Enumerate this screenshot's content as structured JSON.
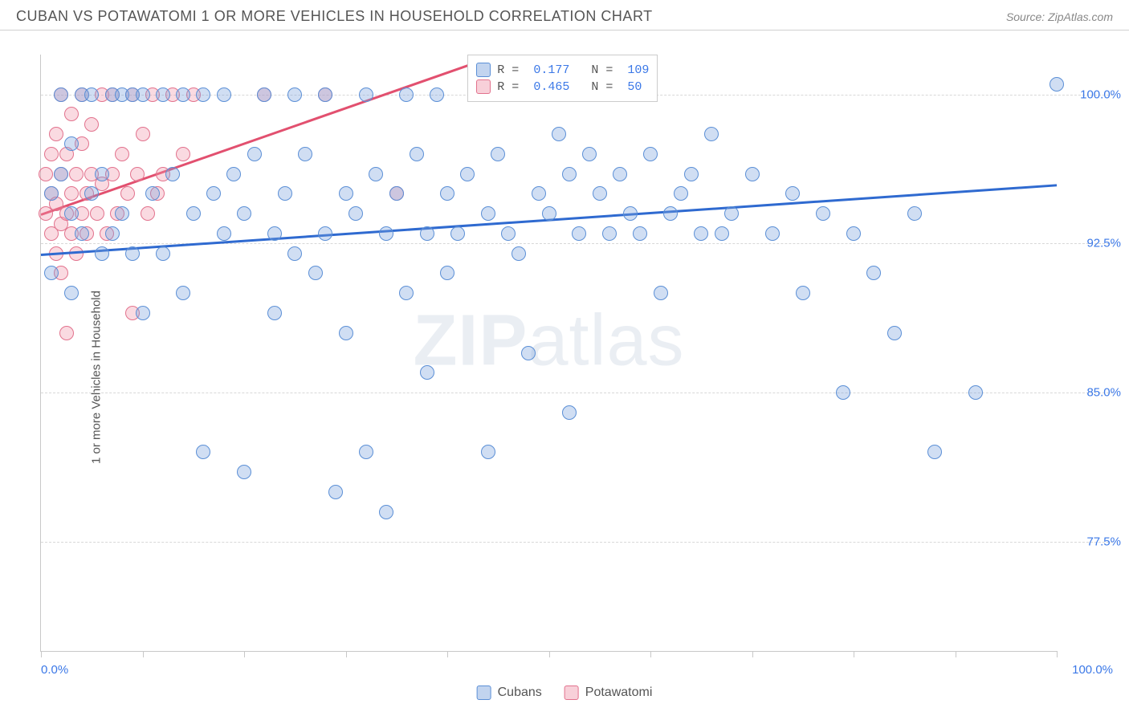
{
  "header": {
    "title": "CUBAN VS POTAWATOMI 1 OR MORE VEHICLES IN HOUSEHOLD CORRELATION CHART",
    "source": "Source: ZipAtlas.com"
  },
  "axes": {
    "y_label": "1 or more Vehicles in Household",
    "x_min_label": "0.0%",
    "x_max_label": "100.0%",
    "x_min": 0,
    "x_max": 100,
    "y_min": 72,
    "y_max": 102,
    "x_ticks": [
      0,
      10,
      20,
      30,
      40,
      50,
      60,
      70,
      80,
      90,
      100
    ],
    "y_ticks": [
      {
        "v": 77.5,
        "label": "77.5%"
      },
      {
        "v": 85.0,
        "label": "85.0%"
      },
      {
        "v": 92.5,
        "label": "92.5%"
      },
      {
        "v": 100.0,
        "label": "100.0%"
      }
    ],
    "tick_label_color": "#3b78e7"
  },
  "watermark": {
    "bold": "ZIP",
    "rest": "atlas"
  },
  "legend_top": {
    "rows": [
      {
        "color_fill": "rgba(120,160,220,0.45)",
        "color_border": "#5b8fd6",
        "r": "0.177",
        "n": "109"
      },
      {
        "color_fill": "rgba(240,150,170,0.45)",
        "color_border": "#e2728d",
        "r": "0.465",
        "n": "50"
      }
    ],
    "r_label": "R =",
    "n_label": "N =",
    "value_color": "#3b78e7"
  },
  "legend_bottom": {
    "items": [
      {
        "label": "Cubans",
        "fill": "rgba(120,160,220,0.45)",
        "border": "#5b8fd6"
      },
      {
        "label": "Potawatomi",
        "fill": "rgba(240,150,170,0.45)",
        "border": "#e2728d"
      }
    ]
  },
  "series": {
    "cubans": {
      "point_fill": "rgba(120,160,220,0.35)",
      "point_border": "#5b8fd6",
      "point_radius": 9,
      "trend": {
        "x1": 0,
        "y1": 92.0,
        "x2": 100,
        "y2": 95.5,
        "color": "#2f6ad0",
        "width": 3
      },
      "points": [
        [
          1,
          91
        ],
        [
          1,
          95
        ],
        [
          2,
          96
        ],
        [
          2,
          100
        ],
        [
          3,
          94
        ],
        [
          3,
          97.5
        ],
        [
          3,
          90
        ],
        [
          4,
          100
        ],
        [
          4,
          93
        ],
        [
          5,
          95
        ],
        [
          5,
          100
        ],
        [
          6,
          96
        ],
        [
          6,
          92
        ],
        [
          7,
          100
        ],
        [
          7,
          93
        ],
        [
          8,
          94
        ],
        [
          8,
          100
        ],
        [
          9,
          100
        ],
        [
          9,
          92
        ],
        [
          10,
          100
        ],
        [
          10,
          89
        ],
        [
          11,
          95
        ],
        [
          12,
          100
        ],
        [
          12,
          92
        ],
        [
          13,
          96
        ],
        [
          14,
          100
        ],
        [
          14,
          90
        ],
        [
          15,
          94
        ],
        [
          16,
          100
        ],
        [
          16,
          82
        ],
        [
          17,
          95
        ],
        [
          18,
          93
        ],
        [
          18,
          100
        ],
        [
          19,
          96
        ],
        [
          20,
          94
        ],
        [
          20,
          81
        ],
        [
          21,
          97
        ],
        [
          22,
          100
        ],
        [
          23,
          93
        ],
        [
          23,
          89
        ],
        [
          24,
          95
        ],
        [
          25,
          100
        ],
        [
          25,
          92
        ],
        [
          26,
          97
        ],
        [
          27,
          91
        ],
        [
          28,
          93
        ],
        [
          28,
          100
        ],
        [
          29,
          80
        ],
        [
          30,
          95
        ],
        [
          30,
          88
        ],
        [
          31,
          94
        ],
        [
          32,
          100
        ],
        [
          32,
          82
        ],
        [
          33,
          96
        ],
        [
          34,
          93
        ],
        [
          34,
          79
        ],
        [
          35,
          95
        ],
        [
          36,
          100
        ],
        [
          36,
          90
        ],
        [
          37,
          97
        ],
        [
          38,
          93
        ],
        [
          38,
          86
        ],
        [
          39,
          100
        ],
        [
          40,
          95
        ],
        [
          40,
          91
        ],
        [
          41,
          93
        ],
        [
          42,
          96
        ],
        [
          43,
          100
        ],
        [
          44,
          94
        ],
        [
          44,
          82
        ],
        [
          45,
          97
        ],
        [
          46,
          93
        ],
        [
          47,
          92
        ],
        [
          48,
          100
        ],
        [
          48,
          87
        ],
        [
          49,
          95
        ],
        [
          50,
          94
        ],
        [
          51,
          98
        ],
        [
          52,
          96
        ],
        [
          52,
          84
        ],
        [
          53,
          93
        ],
        [
          54,
          97
        ],
        [
          55,
          95
        ],
        [
          56,
          93
        ],
        [
          57,
          96
        ],
        [
          58,
          94
        ],
        [
          59,
          93
        ],
        [
          60,
          97
        ],
        [
          61,
          90
        ],
        [
          62,
          94
        ],
        [
          63,
          95
        ],
        [
          64,
          96
        ],
        [
          65,
          93
        ],
        [
          66,
          98
        ],
        [
          67,
          93
        ],
        [
          68,
          94
        ],
        [
          70,
          96
        ],
        [
          72,
          93
        ],
        [
          74,
          95
        ],
        [
          75,
          90
        ],
        [
          77,
          94
        ],
        [
          79,
          85
        ],
        [
          80,
          93
        ],
        [
          82,
          91
        ],
        [
          84,
          88
        ],
        [
          86,
          94
        ],
        [
          88,
          82
        ],
        [
          92,
          85
        ],
        [
          100,
          100.5
        ]
      ]
    },
    "potawatomi": {
      "point_fill": "rgba(240,150,170,0.35)",
      "point_border": "#e2728d",
      "point_radius": 9,
      "trend": {
        "x1": 0,
        "y1": 94.0,
        "x2": 42,
        "y2": 101.5,
        "color": "#e2506f",
        "width": 3
      },
      "points": [
        [
          0.5,
          94
        ],
        [
          0.5,
          96
        ],
        [
          1,
          93
        ],
        [
          1,
          95
        ],
        [
          1,
          97
        ],
        [
          1.5,
          92
        ],
        [
          1.5,
          94.5
        ],
        [
          1.5,
          98
        ],
        [
          2,
          91
        ],
        [
          2,
          93.5
        ],
        [
          2,
          96
        ],
        [
          2,
          100
        ],
        [
          2.5,
          88
        ],
        [
          2.5,
          94
        ],
        [
          2.5,
          97
        ],
        [
          3,
          93
        ],
        [
          3,
          95
        ],
        [
          3,
          99
        ],
        [
          3.5,
          92
        ],
        [
          3.5,
          96
        ],
        [
          4,
          94
        ],
        [
          4,
          97.5
        ],
        [
          4,
          100
        ],
        [
          4.5,
          93
        ],
        [
          4.5,
          95
        ],
        [
          5,
          96
        ],
        [
          5,
          98.5
        ],
        [
          5.5,
          94
        ],
        [
          6,
          95.5
        ],
        [
          6,
          100
        ],
        [
          6.5,
          93
        ],
        [
          7,
          96
        ],
        [
          7,
          100
        ],
        [
          7.5,
          94
        ],
        [
          8,
          97
        ],
        [
          8.5,
          95
        ],
        [
          9,
          100
        ],
        [
          9,
          89
        ],
        [
          9.5,
          96
        ],
        [
          10,
          98
        ],
        [
          10.5,
          94
        ],
        [
          11,
          100
        ],
        [
          11.5,
          95
        ],
        [
          12,
          96
        ],
        [
          13,
          100
        ],
        [
          14,
          97
        ],
        [
          15,
          100
        ],
        [
          22,
          100
        ],
        [
          28,
          100
        ],
        [
          35,
          95
        ]
      ]
    }
  }
}
